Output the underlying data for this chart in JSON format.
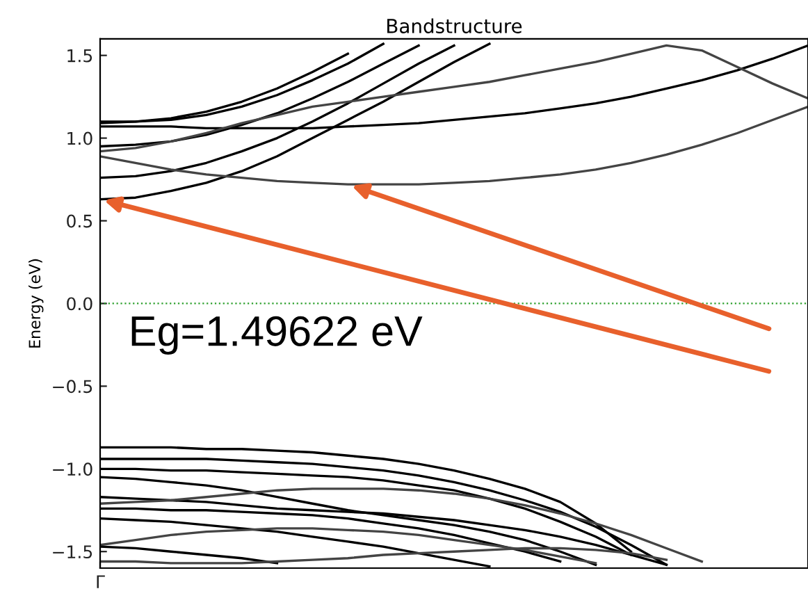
{
  "chart_data": {
    "type": "line",
    "title": "Bandstructure",
    "ylabel": "Energy (eV)",
    "categories": [
      "Γ",
      null,
      null,
      null,
      null,
      null,
      null,
      null,
      null,
      null,
      null,
      null,
      null,
      null,
      null,
      null,
      null,
      null,
      null,
      null,
      null
    ],
    "series": [
      {
        "color": "#000000",
        "values": [
          0.63,
          0.64,
          0.68,
          0.73,
          0.8,
          0.89,
          1.0,
          1.11,
          1.22,
          1.34,
          1.46,
          1.57,
          null,
          null,
          null,
          null,
          null,
          null,
          null,
          null,
          null
        ]
      },
      {
        "color": "#000000",
        "values": [
          0.76,
          0.77,
          0.8,
          0.85,
          0.92,
          1.0,
          1.1,
          1.21,
          1.33,
          1.45,
          1.56,
          null,
          null,
          null,
          null,
          null,
          null,
          null,
          null,
          null,
          null
        ]
      },
      {
        "color": "#000000",
        "values": [
          0.95,
          0.96,
          0.98,
          1.02,
          1.08,
          1.15,
          1.24,
          1.34,
          1.45,
          1.56,
          null,
          null,
          null,
          null,
          null,
          null,
          null,
          null,
          null,
          null,
          null
        ]
      },
      {
        "color": "#000000",
        "values": [
          1.1,
          1.1,
          1.11,
          1.14,
          1.19,
          1.26,
          1.35,
          1.45,
          1.57,
          null,
          null,
          null,
          null,
          null,
          null,
          null,
          null,
          null,
          null,
          null,
          null
        ]
      },
      {
        "color": "#000000",
        "values": [
          1.09,
          1.1,
          1.12,
          1.16,
          1.22,
          1.3,
          1.4,
          1.51,
          null,
          null,
          null,
          null,
          null,
          null,
          null,
          null,
          null,
          null,
          null,
          null,
          null
        ]
      },
      {
        "color": "#000000",
        "values": [
          1.07,
          1.07,
          1.07,
          1.06,
          1.06,
          1.06,
          1.06,
          1.07,
          1.08,
          1.09,
          1.11,
          1.13,
          1.15,
          1.18,
          1.21,
          1.25,
          1.3,
          1.35,
          1.41,
          1.48,
          1.56
        ]
      },
      {
        "color": "#444444",
        "values": [
          0.89,
          0.85,
          0.81,
          0.78,
          0.76,
          0.74,
          0.73,
          0.72,
          0.72,
          0.72,
          0.73,
          0.74,
          0.76,
          0.78,
          0.81,
          0.85,
          0.9,
          0.96,
          1.03,
          1.11,
          1.19
        ]
      },
      {
        "color": "#444444",
        "values": [
          0.92,
          0.94,
          0.98,
          1.03,
          1.09,
          1.14,
          1.19,
          1.22,
          1.25,
          1.28,
          1.31,
          1.34,
          1.38,
          1.42,
          1.46,
          1.51,
          1.56,
          1.53,
          1.43,
          1.33,
          1.24
        ]
      },
      {
        "color": "#000000",
        "values": [
          -0.87,
          -0.87,
          -0.87,
          -0.88,
          -0.88,
          -0.89,
          -0.9,
          -0.92,
          -0.94,
          -0.97,
          -1.01,
          -1.06,
          -1.12,
          -1.2,
          -1.33,
          -1.5,
          null,
          null,
          null,
          null,
          null
        ]
      },
      {
        "color": "#000000",
        "values": [
          -0.94,
          -0.94,
          -0.94,
          -0.94,
          -0.95,
          -0.96,
          -0.97,
          -0.99,
          -1.01,
          -1.04,
          -1.08,
          -1.13,
          -1.19,
          -1.26,
          -1.35,
          -1.46,
          -1.58,
          null,
          null,
          null,
          null
        ]
      },
      {
        "color": "#000000",
        "values": [
          -1.0,
          -1.0,
          -1.01,
          -1.01,
          -1.02,
          -1.03,
          -1.04,
          -1.05,
          -1.07,
          -1.1,
          -1.13,
          -1.18,
          -1.24,
          -1.32,
          -1.41,
          -1.52,
          null,
          null,
          null,
          null,
          null
        ]
      },
      {
        "color": "#000000",
        "values": [
          -1.05,
          -1.06,
          -1.08,
          -1.1,
          -1.13,
          -1.17,
          -1.21,
          -1.25,
          -1.28,
          -1.31,
          -1.34,
          -1.38,
          -1.43,
          -1.5,
          -1.58,
          null,
          null,
          null,
          null,
          null,
          null
        ]
      },
      {
        "color": "#000000",
        "values": [
          -1.17,
          -1.18,
          -1.19,
          -1.2,
          -1.22,
          -1.24,
          -1.25,
          -1.26,
          -1.27,
          -1.29,
          -1.31,
          -1.34,
          -1.37,
          -1.41,
          -1.46,
          -1.52,
          -1.58,
          null,
          null,
          null,
          null
        ]
      },
      {
        "color": "#444444",
        "values": [
          -1.21,
          -1.2,
          -1.19,
          -1.17,
          -1.15,
          -1.13,
          -1.12,
          -1.12,
          -1.12,
          -1.13,
          -1.15,
          -1.18,
          -1.22,
          -1.27,
          -1.33,
          -1.4,
          -1.48,
          -1.56,
          null,
          null,
          null
        ]
      },
      {
        "color": "#000000",
        "values": [
          -1.24,
          -1.24,
          -1.25,
          -1.25,
          -1.26,
          -1.27,
          -1.28,
          -1.3,
          -1.33,
          -1.36,
          -1.4,
          -1.45,
          -1.5,
          -1.56,
          null,
          null,
          null,
          null,
          null,
          null,
          null
        ]
      },
      {
        "color": "#000000",
        "values": [
          -1.3,
          -1.31,
          -1.32,
          -1.34,
          -1.36,
          -1.38,
          -1.41,
          -1.44,
          -1.47,
          -1.51,
          -1.55,
          -1.59,
          null,
          null,
          null,
          null,
          null,
          null,
          null,
          null,
          null
        ]
      },
      {
        "color": "#444444",
        "values": [
          -1.46,
          -1.43,
          -1.4,
          -1.38,
          -1.37,
          -1.36,
          -1.36,
          -1.37,
          -1.38,
          -1.4,
          -1.43,
          -1.46,
          -1.49,
          -1.53,
          -1.57,
          null,
          null,
          null,
          null,
          null,
          null
        ]
      },
      {
        "color": "#000000",
        "values": [
          -1.47,
          -1.48,
          -1.5,
          -1.52,
          -1.54,
          -1.57,
          null,
          null,
          null,
          null,
          null,
          null,
          null,
          null,
          null,
          null,
          null,
          null,
          null,
          null,
          null
        ]
      },
      {
        "color": "#444444",
        "values": [
          -1.56,
          -1.56,
          -1.57,
          -1.57,
          -1.57,
          -1.56,
          -1.55,
          -1.54,
          -1.52,
          -1.51,
          -1.5,
          -1.49,
          -1.48,
          -1.48,
          -1.49,
          -1.51,
          -1.55,
          null,
          null,
          null,
          null
        ]
      }
    ],
    "ylim": [
      -1.6,
      1.6
    ],
    "yticks": [
      {
        "value": -1.5,
        "label": "−1.5"
      },
      {
        "value": -1.0,
        "label": "−1.0"
      },
      {
        "value": -0.5,
        "label": "−0.5"
      },
      {
        "value": 0.0,
        "label": "0.0"
      },
      {
        "value": 0.5,
        "label": "0.5"
      },
      {
        "value": 1.0,
        "label": "1.0"
      },
      {
        "value": 1.5,
        "label": "1.5"
      }
    ],
    "ref_lines": [
      {
        "axis": "y",
        "value": 0,
        "color": "#2ca02c",
        "line_style": "dotted"
      }
    ],
    "annotations": [
      "Eg=1.49622 eV"
    ],
    "grid": false,
    "legend": false,
    "marker": "none",
    "line_style": "solid"
  }
}
